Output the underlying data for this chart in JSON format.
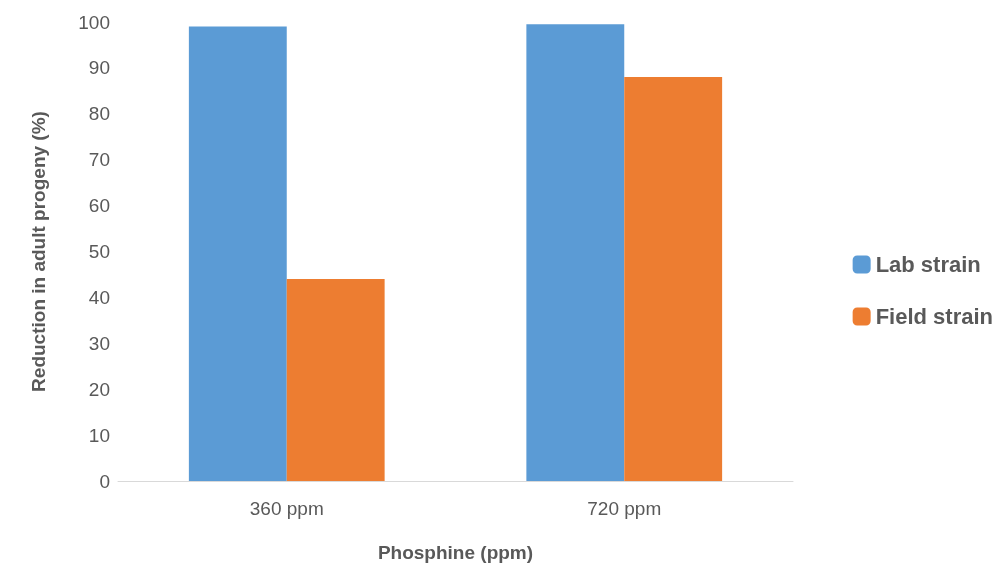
{
  "chart_data": {
    "type": "bar",
    "xlabel": "Phosphine (ppm)",
    "ylabel": "Reduction in adult progeny (%)",
    "categories": [
      "360 ppm",
      "720 ppm"
    ],
    "series": [
      {
        "name": "Lab strain",
        "color": "#5b9bd5",
        "values": [
          99,
          99.5
        ]
      },
      {
        "name": "Field strain",
        "color": "#ed7d31",
        "values": [
          44,
          88
        ]
      }
    ],
    "ylim": [
      0,
      100
    ],
    "yticks": [
      0,
      10,
      20,
      30,
      40,
      50,
      60,
      70,
      80,
      90,
      100
    ],
    "grid": false,
    "legend": "right"
  }
}
